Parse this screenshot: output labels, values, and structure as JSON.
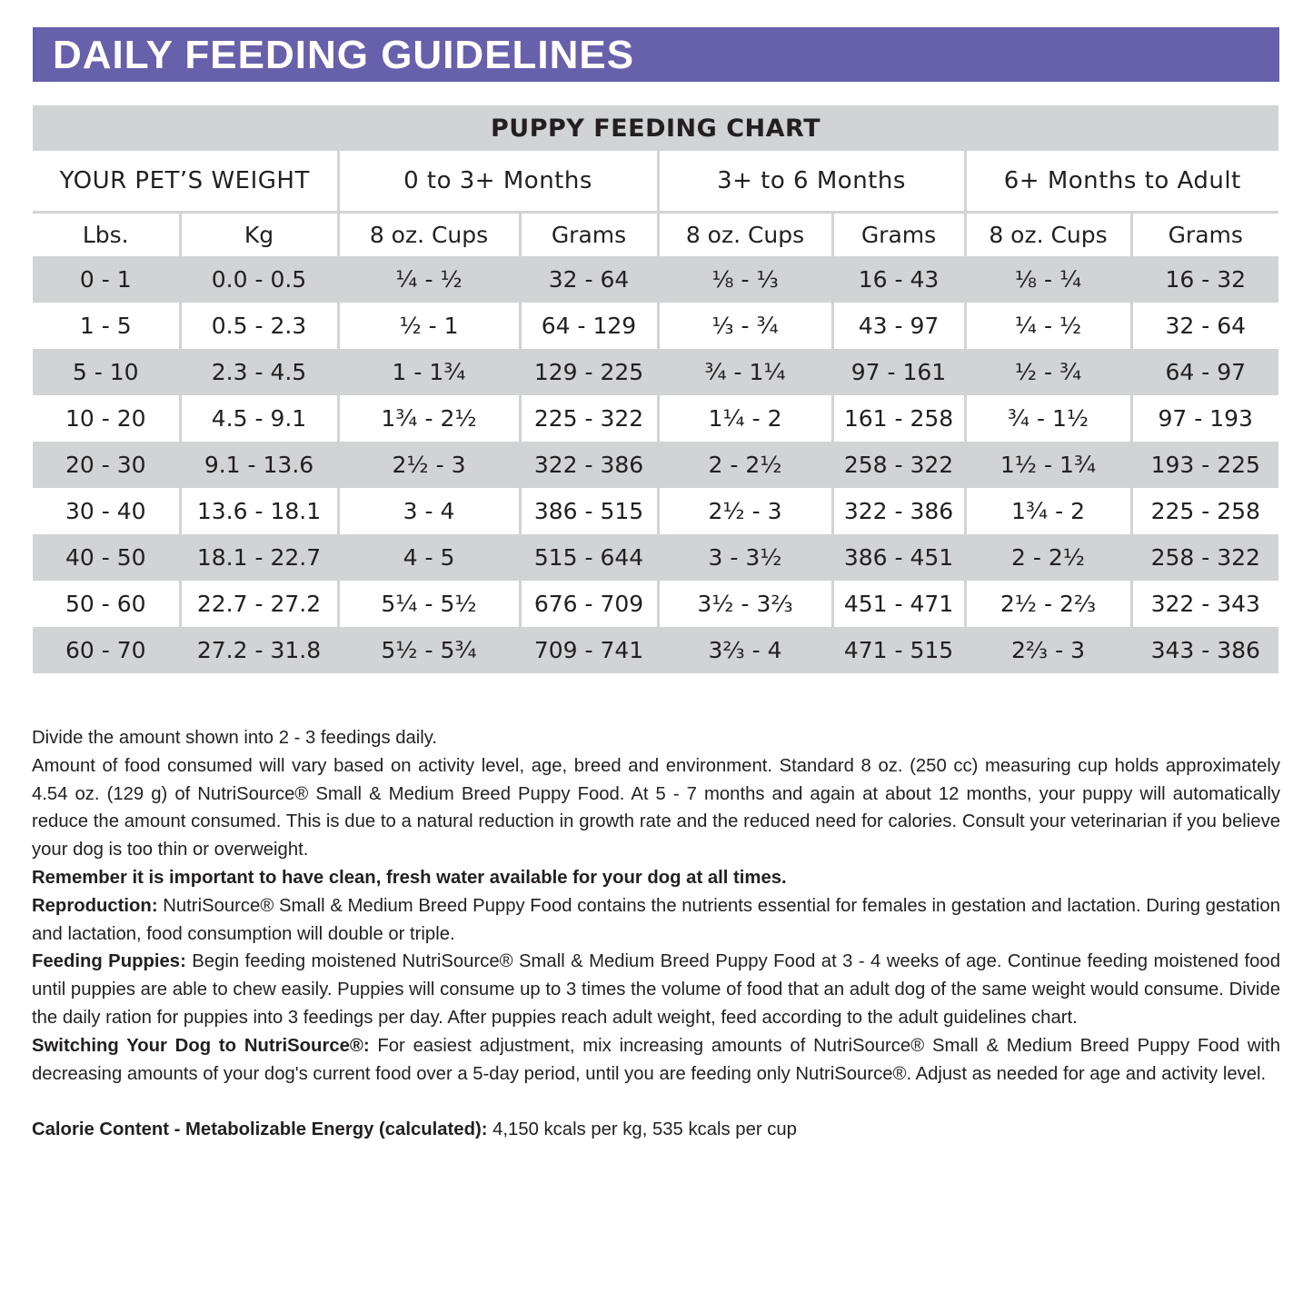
{
  "title": "DAILY FEEDING GUIDELINES",
  "colors": {
    "title_bar": "#6760aa",
    "row_shade": "#d1d3d4"
  },
  "table": {
    "caption": "PUPPY FEEDING CHART",
    "groups": [
      "YOUR PET’S WEIGHT",
      "0 to 3+ Months",
      "3+ to 6 Months",
      "6+ Months to Adult"
    ],
    "columns": [
      "Lbs.",
      "Kg",
      "8 oz. Cups",
      "Grams",
      "8 oz. Cups",
      "Grams",
      "8 oz. Cups",
      "Grams"
    ],
    "rows": [
      [
        "0 - 1",
        "0.0 - 0.5",
        "¼ - ½",
        "32 - 64",
        "⅛ - ⅓",
        "16 - 43",
        "⅛ - ¼",
        "16 - 32"
      ],
      [
        "1 - 5",
        "0.5 - 2.3",
        "½ - 1",
        "64 - 129",
        "⅓ - ¾",
        "43 - 97",
        "¼ - ½",
        "32 - 64"
      ],
      [
        "5 - 10",
        "2.3 - 4.5",
        "1 - 1¾",
        "129 - 225",
        "¾ - 1¼",
        "97 - 161",
        "½ - ¾",
        "64 - 97"
      ],
      [
        "10 - 20",
        "4.5 - 9.1",
        "1¾ - 2½",
        "225 - 322",
        "1¼ - 2",
        "161 - 258",
        "¾ - 1½",
        "97 - 193"
      ],
      [
        "20 - 30",
        "9.1 - 13.6",
        "2½ - 3",
        "322 - 386",
        "2 - 2½",
        "258 - 322",
        "1½ - 1¾",
        "193 - 225"
      ],
      [
        "30 - 40",
        "13.6 - 18.1",
        "3 - 4",
        "386 - 515",
        "2½ - 3",
        "322 - 386",
        "1¾ - 2",
        "225 - 258"
      ],
      [
        "40 - 50",
        "18.1 - 22.7",
        "4 - 5",
        "515 - 644",
        "3 - 3½",
        "386 - 451",
        "2 - 2½",
        "258 - 322"
      ],
      [
        "50 - 60",
        "22.7 - 27.2",
        "5¼ - 5½",
        "676 - 709",
        "3½ - 3⅔",
        "451 - 471",
        "2½ - 2⅔",
        "322 - 343"
      ],
      [
        "60 - 70",
        "27.2 - 31.8",
        "5½ - 5¾",
        "709 - 741",
        "3⅔ - 4",
        "471 - 515",
        "2⅔ - 3",
        "343 - 386"
      ]
    ]
  },
  "notes": {
    "divide": "Divide the amount shown into 2 - 3 feedings daily.",
    "amount": "Amount of food consumed will vary based on activity level, age, breed and environment. Standard 8 oz. (250 cc) measuring cup holds approximately 4.54 oz. (129 g) of NutriSource® Small & Medium Breed Puppy Food. At 5 - 7 months and again at about 12 months, your puppy will automatically reduce the amount consumed. This is due to a natural reduction in growth rate and the reduced need for calories. Consult your veterinarian if you believe your dog is too thin or overweight.",
    "water": "Remember it is important to have clean, fresh water available for your dog at all times.",
    "reproduction_label": "Reproduction:",
    "reproduction": " NutriSource® Small & Medium Breed Puppy Food contains the nutrients essential for females in gestation and lactation. During gestation and lactation, food consumption will double or triple.",
    "puppies_label": "Feeding Puppies:",
    "puppies": " Begin feeding moistened NutriSource® Small & Medium Breed Puppy Food at 3 - 4 weeks of age. Continue feeding moistened food until puppies are able to chew easily. Puppies will consume up to 3 times the volume of food that an adult dog of the same weight would consume. Divide the daily ration for puppies into 3 feedings per day. After puppies reach adult weight, feed according to the adult guidelines chart.",
    "switching_label": "Switching Your Dog to NutriSource®:",
    "switching": " For easiest adjustment, mix increasing amounts of NutriSource® Small & Medium Breed Puppy Food with decreasing amounts of your dog's current food over a 5-day period, until you are feeding only NutriSource®. Adjust as needed for age and activity level.",
    "calorie_label": "Calorie Content - Metabolizable Energy (calculated):",
    "calorie": " 4,150 kcals per kg, 535 kcals per cup"
  }
}
